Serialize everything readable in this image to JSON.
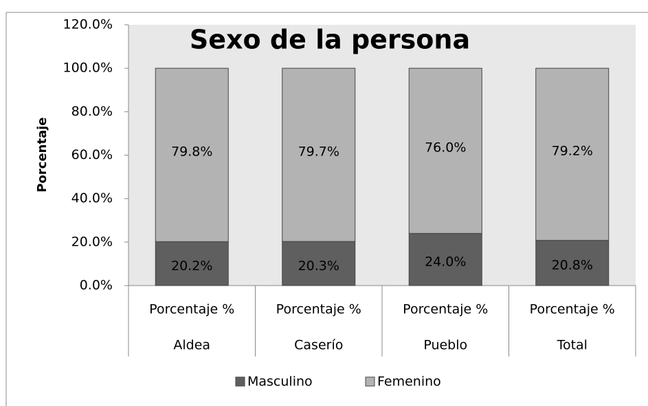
{
  "chart_data": {
    "type": "stacked_bar",
    "title": "Sexo de la persona",
    "y_label": "Porcentaje",
    "categories": [
      "Aldea",
      "Caserío",
      "Pueblo",
      "Total"
    ],
    "subcategories": [
      "Porcentaje %",
      "Porcentaje %",
      "Porcentaje %",
      "Porcentaje %"
    ],
    "series": [
      {
        "name": "Masculino",
        "color": "#5f5f5f",
        "values": [
          20.2,
          20.3,
          24.0,
          20.8
        ],
        "value_labels": [
          "20.2%",
          "20.3%",
          "24.0%",
          "20.8%"
        ]
      },
      {
        "name": "Femenino",
        "color": "#b3b3b3",
        "values": [
          79.8,
          79.7,
          76.0,
          79.2
        ],
        "value_labels": [
          "79.8%",
          "79.7%",
          "76.0%",
          "79.2%"
        ]
      }
    ],
    "ylim": [
      0,
      120
    ],
    "yticks": [
      {
        "value": 0,
        "label": "0.0%"
      },
      {
        "value": 20,
        "label": "20.0%"
      },
      {
        "value": 40,
        "label": "40.0%"
      },
      {
        "value": 60,
        "label": "60.0%"
      },
      {
        "value": 80,
        "label": "80.0%"
      },
      {
        "value": 100,
        "label": "100.0%"
      },
      {
        "value": 120,
        "label": "120.0%"
      }
    ],
    "legend": "bottom"
  }
}
